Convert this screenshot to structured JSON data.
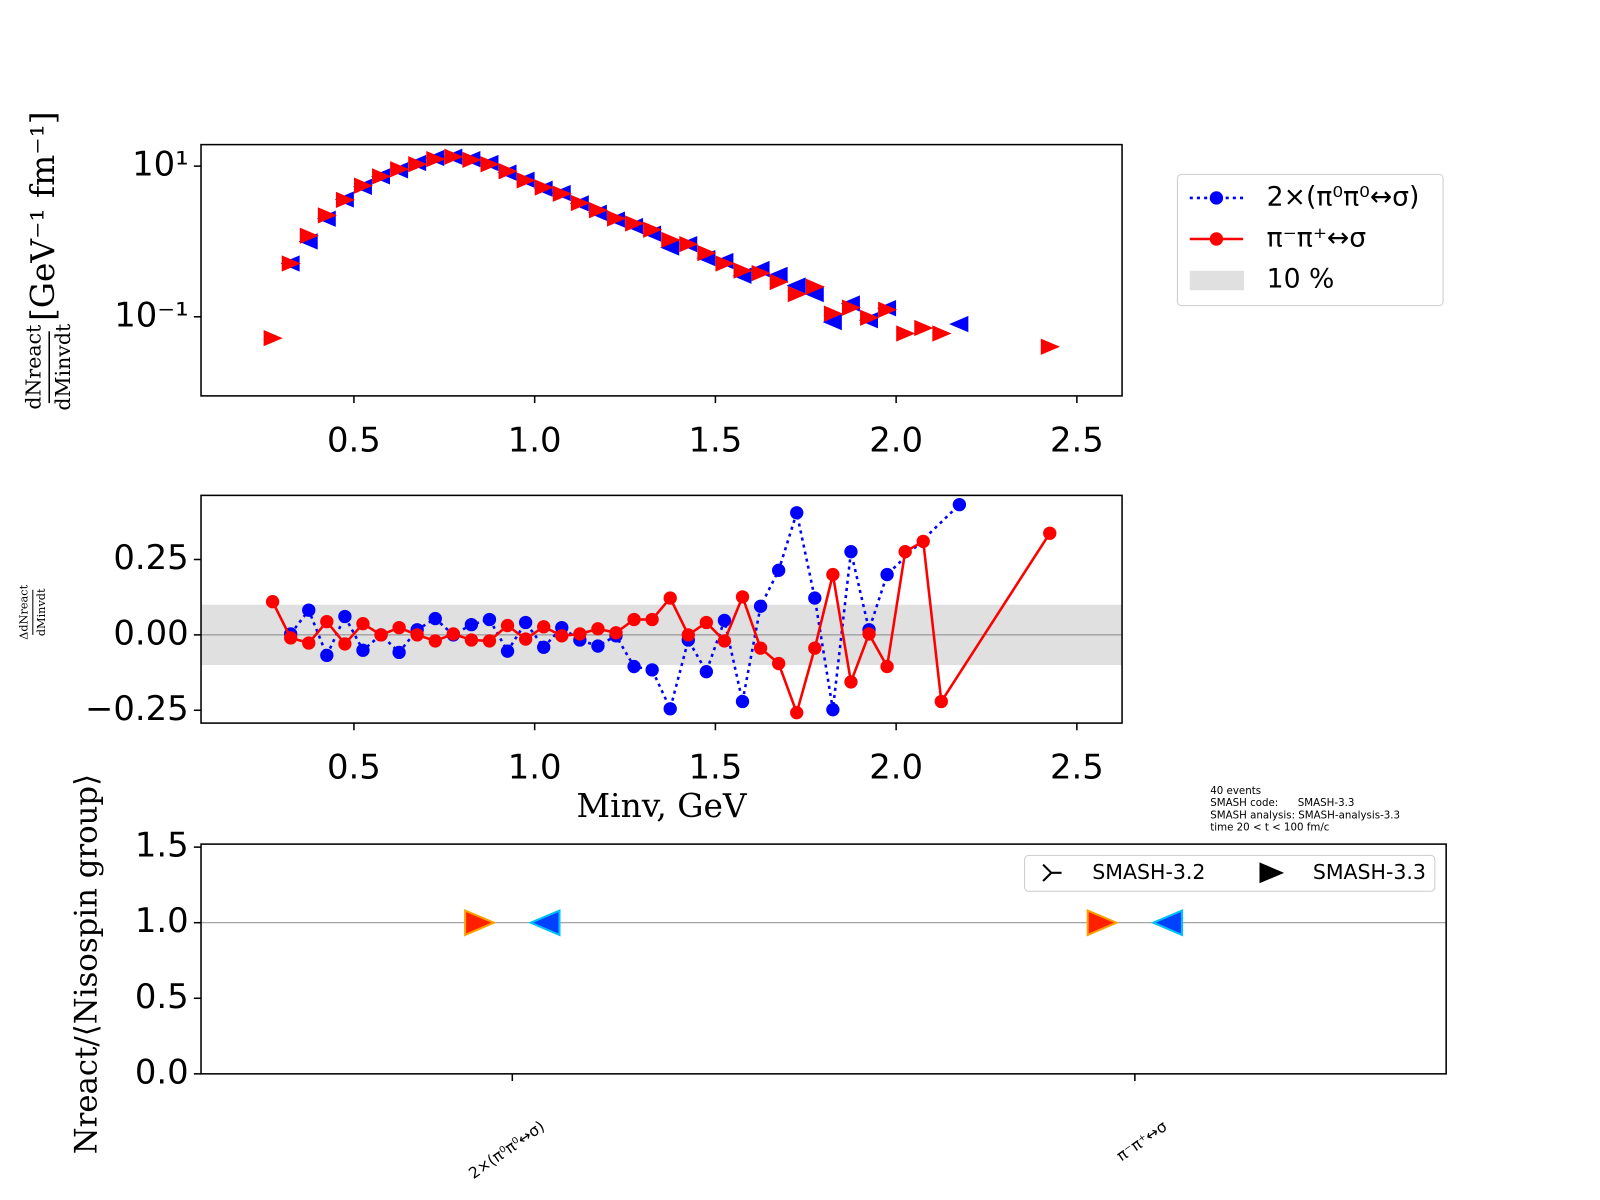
{
  "chart_data": [
    {
      "type": "scatter",
      "log_y": true,
      "ylabel_numerator": "dNreact",
      "ylabel_denominator": "dMinvdt",
      "ylabel_unit": "[GeV⁻¹ fm⁻¹]",
      "xlim": [
        0.077,
        2.625
      ],
      "ylim": [
        0.0089,
        19.3
      ],
      "xticks": [
        0.5,
        {
          "value": 1,
          "label": "1.0"
        },
        1.5,
        {
          "value": 2,
          "label": "2.0"
        },
        2.5
      ],
      "yticks": [
        {
          "value": 10,
          "label": "10¹"
        },
        {
          "value": 0.1,
          "label": "10⁻¹"
        }
      ],
      "series": [
        {
          "color": "#0000ff",
          "x": [
            0.325,
            0.375,
            0.425,
            0.475,
            0.525,
            0.575,
            0.625,
            0.675,
            0.725,
            0.775,
            0.825,
            0.875,
            0.925,
            0.975,
            1.025,
            1.075,
            1.125,
            1.175,
            1.225,
            1.275,
            1.325,
            1.375,
            1.425,
            1.475,
            1.525,
            1.575,
            1.625,
            1.675,
            1.725,
            1.775,
            1.825,
            1.875,
            1.925,
            1.975,
            2.175
          ],
          "values": [
            0.51,
            1.0,
            2.0,
            3.6,
            5.3,
            7.3,
            8.8,
            11.0,
            12.8,
            13.3,
            12.4,
            11.0,
            8.2,
            6.6,
            5.0,
            4.4,
            3.2,
            2.4,
            1.95,
            1.6,
            1.27,
            0.83,
            0.92,
            0.6,
            0.55,
            0.35,
            0.43,
            0.36,
            0.26,
            0.2,
            0.085,
            0.15,
            0.09,
            0.13,
            0.08
          ]
        },
        {
          "color": "#ff0000",
          "x": [
            0.275,
            0.325,
            0.375,
            0.425,
            0.475,
            0.525,
            0.575,
            0.625,
            0.675,
            0.725,
            0.775,
            0.825,
            0.875,
            0.925,
            0.975,
            1.025,
            1.075,
            1.125,
            1.175,
            1.225,
            1.275,
            1.325,
            1.375,
            1.425,
            1.475,
            1.525,
            1.575,
            1.625,
            1.675,
            1.725,
            1.775,
            1.825,
            1.875,
            1.925,
            1.975,
            2.025,
            2.075,
            2.125,
            2.425
          ],
          "values": [
            0.052,
            0.51,
            1.19,
            2.22,
            3.56,
            5.5,
            7.3,
            9.1,
            10.6,
            12.4,
            13.3,
            12.1,
            10.6,
            8.55,
            6.46,
            5.2,
            4.3,
            3.24,
            2.6,
            2.02,
            1.73,
            1.43,
            1.05,
            0.92,
            0.7,
            0.51,
            0.41,
            0.38,
            0.29,
            0.2,
            0.25,
            0.11,
            0.132,
            0.097,
            0.124,
            0.06,
            0.071,
            0.06,
            0.04
          ]
        }
      ]
    },
    {
      "type": "line",
      "ylabel_numerator": "ΔdNreact",
      "ylabel_denominator": "dMinvdt",
      "xlabel": "Minv, GeV",
      "xlim": [
        0.077,
        2.625
      ],
      "ylim": [
        -0.2925,
        0.4626
      ],
      "xticks": [
        0.5,
        {
          "value": 1,
          "label": "1.0"
        },
        1.5,
        {
          "value": 2,
          "label": "2.0"
        },
        2.5
      ],
      "yticks": [
        {
          "value": -0.25,
          "label": "−0.25"
        },
        {
          "value": 0,
          "label": "0.00"
        },
        0.25
      ],
      "band": 0.1,
      "band_label": "10 %",
      "band_color": "#e0e0e0",
      "series": [
        {
          "name": "2×(π⁰π⁰↔σ)",
          "color": "#0000ff",
          "linestyle": "dotted",
          "x": [
            0.325,
            0.375,
            0.425,
            0.475,
            0.525,
            0.575,
            0.625,
            0.675,
            0.725,
            0.775,
            0.825,
            0.875,
            0.925,
            0.975,
            1.025,
            1.075,
            1.125,
            1.175,
            1.225,
            1.275,
            1.325,
            1.375,
            1.425,
            1.475,
            1.525,
            1.575,
            1.625,
            1.675,
            1.725,
            1.775,
            1.825,
            1.875,
            1.925,
            1.975,
            2.175
          ],
          "values": [
            0.003,
            0.082,
            -0.068,
            0.061,
            -0.051,
            0,
            -0.058,
            0.017,
            0.054,
            0,
            0.034,
            0.051,
            -0.054,
            0.041,
            -0.041,
            0.024,
            -0.017,
            -0.037,
            -0.003,
            -0.105,
            -0.116,
            -0.245,
            -0.017,
            -0.122,
            0.048,
            -0.221,
            0.095,
            0.214,
            0.405,
            0.122,
            -0.248,
            0.276,
            0.017,
            0.2,
            0.432
          ]
        },
        {
          "name": "π⁻π⁺↔σ",
          "color": "#ff0000",
          "linestyle": "solid",
          "x": [
            0.275,
            0.325,
            0.375,
            0.425,
            0.475,
            0.525,
            0.575,
            0.625,
            0.675,
            0.725,
            0.775,
            0.825,
            0.875,
            0.925,
            0.975,
            1.025,
            1.075,
            1.125,
            1.175,
            1.225,
            1.275,
            1.325,
            1.375,
            1.425,
            1.475,
            1.525,
            1.575,
            1.625,
            1.675,
            1.725,
            1.775,
            1.825,
            1.875,
            1.925,
            1.975,
            2.025,
            2.075,
            2.125,
            2.425
          ],
          "values": [
            0.11,
            -0.01,
            -0.027,
            0.044,
            -0.03,
            0.037,
            0,
            0.024,
            0,
            -0.02,
            0.003,
            -0.017,
            -0.02,
            0.031,
            -0.014,
            0.027,
            -0.003,
            0.003,
            0.02,
            0.007,
            0.051,
            0.051,
            0.122,
            0,
            0.041,
            -0.02,
            0.126,
            -0.044,
            -0.095,
            -0.258,
            -0.044,
            0.2,
            -0.156,
            0.003,
            -0.105,
            0.276,
            0.31,
            -0.221,
            0.337
          ]
        }
      ]
    },
    {
      "type": "scatter",
      "ylabel": "Nreact/⟨Nisospin group⟩",
      "categories": [
        "2×(π⁰π⁰↔σ)",
        "π⁻π⁺↔σ"
      ],
      "ylim": [
        0,
        1.52
      ],
      "yticks": [
        {
          "value": 0,
          "label": "0.0"
        },
        0.5,
        {
          "value": 1,
          "label": "1.0"
        },
        1.5
      ],
      "series": [
        {
          "name": "SMASH-3.2",
          "color": "#ff2000",
          "values": [
            1.0,
            1.0
          ]
        },
        {
          "name": "SMASH-3.3",
          "color": "#0040ff",
          "values": [
            1.0,
            1.0
          ]
        }
      ],
      "annotation": [
        "40 events",
        "SMASH code:      SMASH-3.3",
        "SMASH analysis: SMASH-analysis-3.3",
        "time 20 < t < 100 fm/c"
      ]
    }
  ]
}
